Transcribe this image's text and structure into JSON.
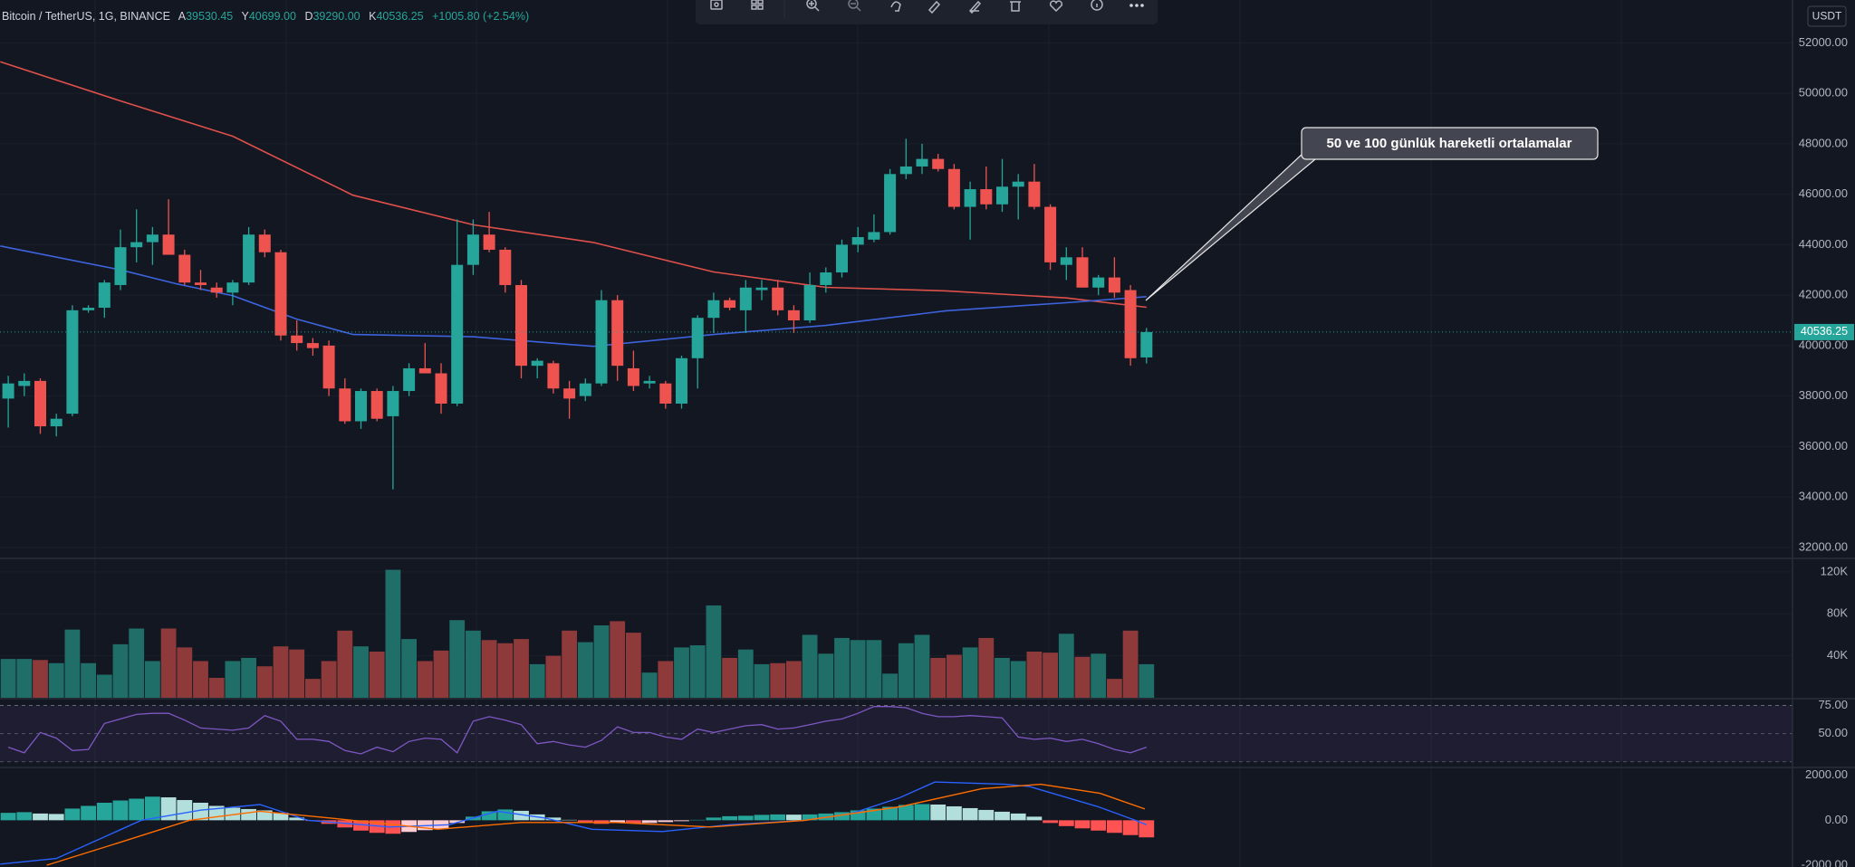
{
  "chart_data": [
    {
      "type": "candlestick",
      "symbol": "Bitcoin / TetherUS, 1G, BINANCE",
      "legend": [
        {
          "key": "A",
          "text": "39530.45"
        },
        {
          "key": "Y",
          "text": "40699.00"
        },
        {
          "key": "D",
          "text": "39290.00"
        },
        {
          "key": "K",
          "text": "40536.25"
        }
      ],
      "change": "+1005.80 (+2.54%)",
      "currency": "USDT",
      "annotation": "50 ve 100 günlük hareketli ortalamalar",
      "open": [
        37900,
        38400,
        38600,
        36800,
        37300,
        41400,
        41500,
        42400,
        43900,
        44100,
        44400,
        43600,
        42500,
        42300,
        42100,
        42500,
        44400,
        43700,
        40400,
        40100,
        40000,
        38300,
        37000,
        38200,
        37200,
        38200,
        39100,
        38900,
        37700,
        43200,
        44400,
        43800,
        42400,
        39200,
        39300,
        38300,
        38000,
        38500,
        41800,
        39100,
        38500,
        38500,
        37700,
        39500,
        41100,
        41800,
        41400,
        42200,
        42300,
        41400,
        41000,
        42400,
        42900,
        44000,
        44200,
        44500,
        46800,
        47100,
        47400,
        47000,
        45500,
        46200,
        45600,
        46300,
        46500,
        45500,
        43200,
        43500,
        42300,
        42700,
        42200,
        39530.45
      ],
      "high": [
        38800,
        38900,
        38700,
        37300,
        41600,
        41600,
        42600,
        44600,
        45400,
        44700,
        45800,
        43800,
        43000,
        42500,
        42600,
        44700,
        44600,
        43800,
        41000,
        40300,
        40200,
        38700,
        38300,
        38300,
        38400,
        39300,
        40100,
        39300,
        45000,
        45000,
        45300,
        43900,
        42600,
        39500,
        39400,
        38600,
        38700,
        42200,
        42000,
        39800,
        38800,
        38600,
        39600,
        41200,
        42100,
        41900,
        42600,
        42600,
        42600,
        41600,
        42900,
        43100,
        44200,
        44700,
        45200,
        47000,
        48200,
        48000,
        47600,
        47200,
        46500,
        47100,
        47400,
        46800,
        47200,
        45600,
        43900,
        43900,
        42800,
        43500,
        42400,
        40699
      ],
      "low": [
        36750,
        38000,
        36500,
        36400,
        37200,
        41300,
        41100,
        42200,
        43300,
        43200,
        43600,
        42400,
        42200,
        41900,
        41600,
        42400,
        43500,
        40200,
        39800,
        39600,
        38000,
        36900,
        36700,
        37000,
        34300,
        38000,
        38900,
        37300,
        37600,
        42800,
        43700,
        42100,
        38700,
        38700,
        38100,
        37100,
        37800,
        38400,
        38600,
        38200,
        38300,
        37500,
        37500,
        38300,
        40500,
        41400,
        40500,
        41800,
        41200,
        40500,
        40900,
        42100,
        42700,
        43700,
        44100,
        44400,
        46600,
        46800,
        46900,
        45400,
        44200,
        45400,
        45300,
        45000,
        45400,
        43000,
        42600,
        42300,
        42000,
        41900,
        39200,
        39290
      ],
      "close": [
        38500,
        38600,
        36800,
        37100,
        41400,
        41500,
        42500,
        43900,
        44100,
        44400,
        43600,
        42500,
        42400,
        42100,
        42500,
        44400,
        43700,
        40400,
        40100,
        39900,
        38300,
        37000,
        38200,
        37100,
        38200,
        39100,
        38900,
        37700,
        43200,
        44400,
        43800,
        42400,
        39200,
        39400,
        38300,
        37900,
        38500,
        41800,
        39200,
        38400,
        38600,
        37700,
        39500,
        41100,
        41800,
        41500,
        42300,
        42300,
        41400,
        41000,
        42400,
        42900,
        44000,
        44300,
        44500,
        46800,
        47100,
        47400,
        47000,
        45500,
        46200,
        45600,
        46300,
        46500,
        45500,
        43300,
        43500,
        42300,
        42700,
        42100,
        39500,
        40536.25
      ],
      "up_color": "#26a69a",
      "down_color": "#ef5350",
      "series": [
        {
          "color": "#e0504a",
          "x": [
            -0.5,
            7,
            14,
            21.5,
            29,
            36.5,
            44,
            51,
            58.5,
            66,
            71
          ],
          "values": [
            51250,
            49700,
            48300,
            45960,
            44790,
            44090,
            42920,
            42310,
            42170,
            41890,
            41520
          ]
        },
        {
          "color": "#3d63dd",
          "x": [
            -0.5,
            7,
            10.5,
            14,
            18,
            21.5,
            29,
            36.5,
            44,
            51,
            58.5,
            66,
            71
          ],
          "values": [
            43950,
            43000,
            42450,
            41980,
            41050,
            40440,
            40350,
            39970,
            40440,
            40800,
            41380,
            41700,
            41940
          ]
        }
      ],
      "ylim": [
        31600,
        53700
      ],
      "yticks": [
        {
          "value": 32000,
          "label": "32000.00"
        },
        {
          "value": 34000,
          "label": "34000.00"
        },
        {
          "value": 36000,
          "label": "36000.00"
        },
        {
          "value": 38000,
          "label": "38000.00"
        },
        {
          "value": 40000,
          "label": "40000.00"
        },
        {
          "value": 42000,
          "label": "42000.00"
        },
        {
          "value": 44000,
          "label": "44000.00"
        },
        {
          "value": 46000,
          "label": "46000.00"
        },
        {
          "value": 48000,
          "label": "48000.00"
        },
        {
          "value": 50000,
          "label": "50000.00"
        },
        {
          "value": 52000,
          "label": "52000.00"
        }
      ],
      "grid": true
    },
    {
      "type": "bar",
      "values": [
        37000,
        37000,
        36000,
        33000,
        65000,
        33000,
        22000,
        51000,
        66000,
        35000,
        66000,
        48000,
        35000,
        19000,
        35000,
        38000,
        30000,
        49000,
        46000,
        18000,
        35000,
        64000,
        49000,
        44000,
        122000,
        56000,
        35000,
        45000,
        74000,
        64000,
        55000,
        52000,
        56000,
        32000,
        40000,
        64000,
        53000,
        69000,
        73000,
        62000,
        24000,
        35000,
        48000,
        50000,
        88000,
        38000,
        46000,
        32000,
        33000,
        35000,
        60000,
        42000,
        57000,
        55000,
        55000,
        23000,
        52000,
        60000,
        38000,
        41000,
        48000,
        57000,
        38000,
        35000,
        44000,
        43000,
        61000,
        39000,
        42000,
        18000,
        64000,
        32000
      ],
      "up_color": "#1f6e68",
      "down_color": "#8e3a3a",
      "ylim": [
        0,
        132000
      ],
      "yticks": [
        {
          "value": 40000,
          "label": "40K"
        },
        {
          "value": 80000,
          "label": "80K"
        },
        {
          "value": 120000,
          "label": "120K"
        }
      ],
      "grid": true
    },
    {
      "type": "line",
      "values": [
        38,
        33,
        51,
        46,
        35,
        36,
        59,
        63,
        67,
        68,
        68,
        62,
        55,
        54,
        53,
        55,
        66,
        61,
        45,
        45,
        43,
        35,
        32,
        38,
        34,
        43,
        46,
        45,
        33,
        61,
        65,
        62,
        58,
        41,
        43,
        40,
        38,
        44,
        56,
        51,
        51,
        47,
        45,
        54,
        51,
        54,
        57,
        58,
        54,
        55,
        58,
        61,
        63,
        68,
        74,
        74,
        73,
        68,
        65,
        65,
        66,
        65,
        64,
        47,
        45,
        46,
        43,
        45,
        41,
        36,
        33,
        38
      ],
      "color": "#7e57c2",
      "band": [
        75,
        25
      ],
      "ylim": [
        20.8,
        80.2
      ],
      "yticks": [
        {
          "value": 50,
          "label": "50.00"
        },
        {
          "value": 75,
          "label": "75.00"
        }
      ],
      "grid": true
    },
    {
      "type": "macd",
      "histogram": [
        330,
        360,
        300,
        280,
        520,
        640,
        780,
        880,
        960,
        1050,
        1020,
        900,
        780,
        640,
        560,
        500,
        440,
        340,
        120,
        -30,
        -160,
        -320,
        -460,
        -560,
        -600,
        -520,
        -440,
        -380,
        -120,
        160,
        400,
        480,
        420,
        260,
        120,
        20,
        -100,
        -160,
        -120,
        -140,
        -120,
        -80,
        -40,
        20,
        120,
        180,
        200,
        240,
        260,
        250,
        260,
        300,
        360,
        440,
        520,
        600,
        680,
        720,
        700,
        620,
        540,
        460,
        380,
        300,
        160,
        -120,
        -260,
        -360,
        -460,
        -560,
        -660,
        -760
      ],
      "hist_colors": [
        "#26a69a",
        "#b2dfdb",
        "#ff5252",
        "#ffcdd2"
      ],
      "series": [
        {
          "color": "#2962ff",
          "x": [
            -0.5,
            3,
            8.3,
            12,
            15.7,
            18.7,
            23.8,
            27.5,
            30.5,
            33.5,
            36.4,
            40.8,
            45,
            49.7,
            52.6,
            55.6,
            57.8,
            62.2,
            63.7,
            68,
            70.3,
            71
          ],
          "values": [
            -1950,
            -1700,
            0,
            450,
            700,
            0,
            -300,
            -200,
            400,
            100,
            -400,
            -500,
            -200,
            0,
            300,
            1000,
            1700,
            1600,
            1500,
            600,
            0,
            -200
          ]
        },
        {
          "color": "#ff6d00",
          "x": [
            2.4,
            6.9,
            11.3,
            15.7,
            20.1,
            26.8,
            32,
            37.9,
            43.8,
            49.7,
            55.6,
            60.7,
            64.4,
            68.1,
            70.9
          ],
          "values": [
            -2000,
            -1000,
            0,
            400,
            100,
            -400,
            -100,
            -100,
            -300,
            0,
            600,
            1400,
            1600,
            1200,
            500
          ]
        }
      ],
      "ylim": [
        -2080,
        2310
      ],
      "yticks": [
        {
          "value": -2000,
          "label": "-2000.00"
        },
        {
          "value": 0,
          "label": "0.00"
        },
        {
          "value": 2000,
          "label": "2000.00"
        }
      ],
      "grid": false
    }
  ]
}
